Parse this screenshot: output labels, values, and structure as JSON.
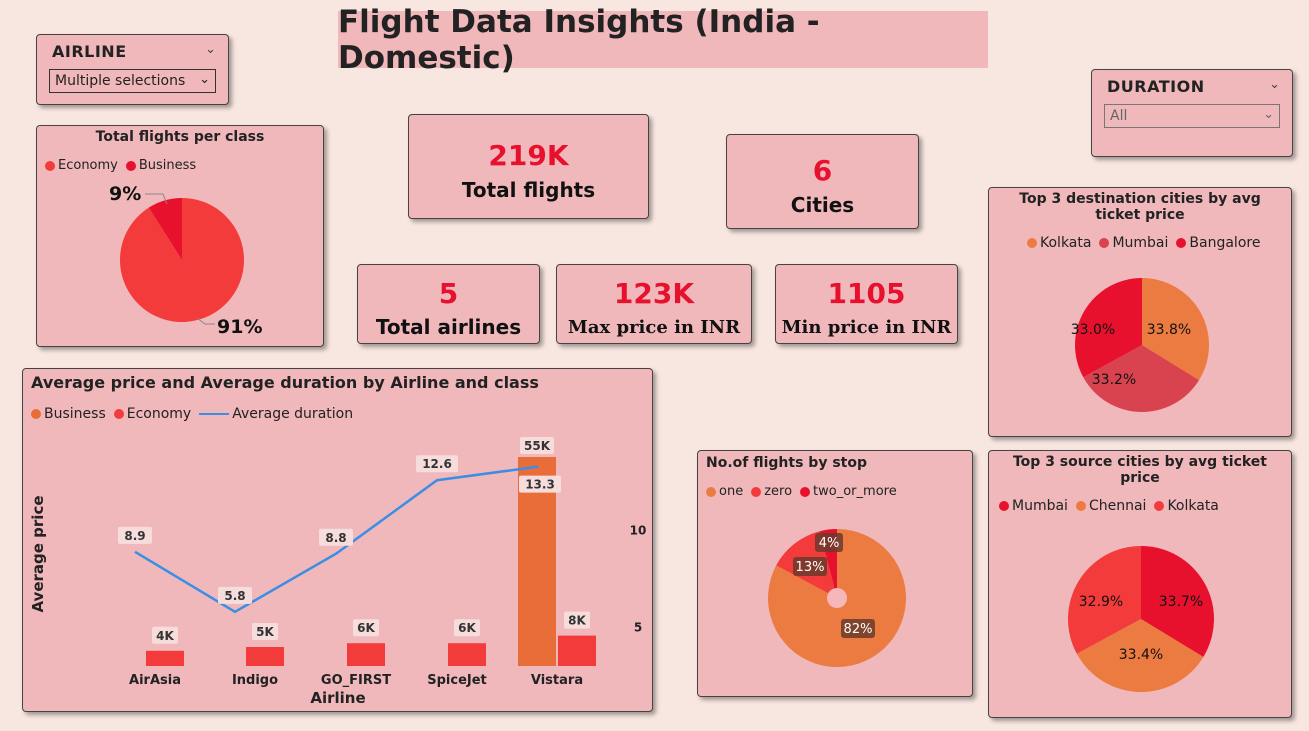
{
  "title": "Flight Data Insights (India - Domestic)",
  "slicers": {
    "airline": {
      "label": "AIRLINE",
      "value": "Multiple selections"
    },
    "duration": {
      "label": "DURATION",
      "value": "All"
    }
  },
  "kpis": {
    "total_flights": {
      "value": "219K",
      "label": "Total flights"
    },
    "cities": {
      "value": "6",
      "label": "Cities"
    },
    "total_airlines": {
      "value": "5",
      "label": "Total airlines"
    },
    "max_price": {
      "value": "123K",
      "label": "Max price in INR"
    },
    "min_price": {
      "value": "1105",
      "label": "Min price in INR"
    }
  },
  "colors": {
    "economy": "#f43b3b",
    "business": "#e8112d",
    "orange": "#ec7b41",
    "mumbai": "#d94350",
    "bar_business": "#e86d38",
    "line": "#3a8ee6"
  },
  "chart_data": [
    {
      "id": "class_pie",
      "type": "pie",
      "title": "Total flights per class",
      "legend": [
        "Economy",
        "Business"
      ],
      "slices": [
        {
          "name": "Economy",
          "value": 91,
          "label": "91%",
          "color": "#f43b3b"
        },
        {
          "name": "Business",
          "value": 9,
          "label": "9%",
          "color": "#e8112d"
        }
      ]
    },
    {
      "id": "dest_pie",
      "type": "pie",
      "title": "Top 3 destination cities by avg ticket price",
      "legend": [
        "Kolkata",
        "Mumbai",
        "Bangalore"
      ],
      "slices": [
        {
          "name": "Kolkata",
          "value": 33.8,
          "label": "33.8%",
          "color": "#ec7b41"
        },
        {
          "name": "Mumbai",
          "value": 33.2,
          "label": "33.2%",
          "color": "#d94350"
        },
        {
          "name": "Bangalore",
          "value": 33.0,
          "label": "33.0%",
          "color": "#e8112d"
        }
      ]
    },
    {
      "id": "stop_pie",
      "type": "pie",
      "title": "No.of flights by stop",
      "legend": [
        "one",
        "zero",
        "two_or_more"
      ],
      "slices": [
        {
          "name": "one",
          "value": 82,
          "label": "82%",
          "color": "#ec7b41"
        },
        {
          "name": "zero",
          "value": 13,
          "label": "13%",
          "color": "#f43b3b"
        },
        {
          "name": "two_or_more",
          "value": 4,
          "label": "4%",
          "color": "#e8112d"
        }
      ]
    },
    {
      "id": "source_pie",
      "type": "pie",
      "title": "Top 3 source cities by avg ticket price",
      "legend": [
        "Mumbai",
        "Chennai",
        "Kolkata"
      ],
      "slices": [
        {
          "name": "Mumbai",
          "value": 33.7,
          "label": "33.7%",
          "color": "#e8112d"
        },
        {
          "name": "Chennai",
          "value": 33.4,
          "label": "33.4%",
          "color": "#ec7b41"
        },
        {
          "name": "Kolkata",
          "value": 32.9,
          "label": "32.9%",
          "color": "#f43b3b"
        }
      ]
    },
    {
      "id": "combo",
      "type": "bar",
      "title": "Average price and Average duration by Airline and class",
      "xlabel": "Airline",
      "ylabel": "Average price",
      "legend": [
        "Business",
        "Economy",
        "Average duration"
      ],
      "categories": [
        "AirAsia",
        "Indigo",
        "GO_FIRST",
        "SpiceJet",
        "Vistara"
      ],
      "series": [
        {
          "name": "Business",
          "values": [
            null,
            null,
            null,
            null,
            55000
          ],
          "labels": [
            "",
            "",
            "",
            "",
            "55K"
          ],
          "color": "#e86d38"
        },
        {
          "name": "Economy",
          "values": [
            4000,
            5000,
            6000,
            6000,
            8000
          ],
          "labels": [
            "4K",
            "5K",
            "6K",
            "6K",
            "8K"
          ],
          "color": "#f43b3b"
        }
      ],
      "line": {
        "name": "Average duration",
        "values": [
          8.9,
          5.8,
          8.8,
          12.6,
          13.3
        ],
        "labels": [
          "8.9",
          "5.8",
          "8.8",
          "12.6",
          "13.3"
        ],
        "color": "#3a8ee6"
      },
      "y2ticks": [
        "10",
        "5"
      ],
      "ylim": [
        0,
        55000
      ],
      "y2lim": [
        3,
        13.8
      ]
    }
  ]
}
